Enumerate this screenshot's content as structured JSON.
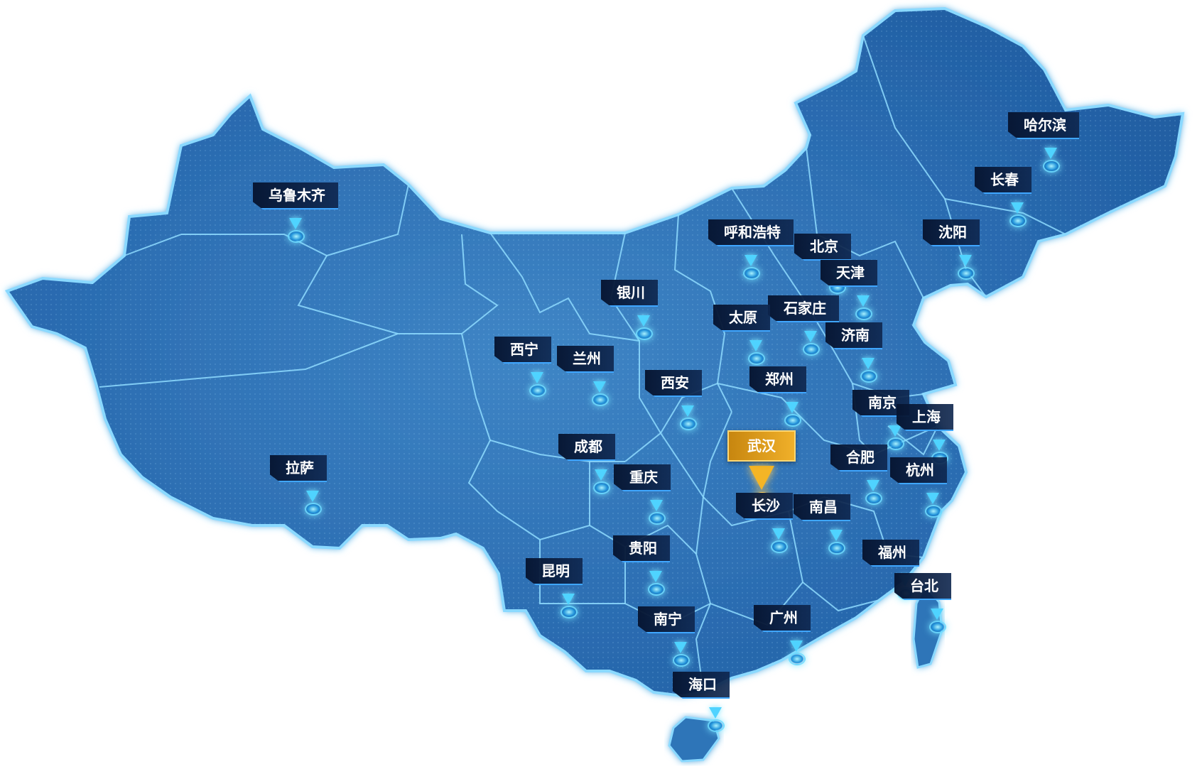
{
  "map": {
    "active_city": "wuhan",
    "colors": {
      "land": "#2e74b8",
      "border": "#7fd2ff",
      "glow": "#56c6ff",
      "label_bg": "#0b1f45",
      "highlight": "#f0b02a"
    },
    "cities": [
      {
        "id": "urumqi",
        "name": "乌鲁木齐"
      },
      {
        "id": "harbin",
        "name": "哈尔滨"
      },
      {
        "id": "changchun",
        "name": "长春"
      },
      {
        "id": "shenyang",
        "name": "沈阳"
      },
      {
        "id": "hohhot",
        "name": "呼和浩特"
      },
      {
        "id": "beijing",
        "name": "北京"
      },
      {
        "id": "tianjin",
        "name": "天津"
      },
      {
        "id": "yinchuan",
        "name": "银川"
      },
      {
        "id": "shijiazhuang",
        "name": "石家庄"
      },
      {
        "id": "taiyuan",
        "name": "太原"
      },
      {
        "id": "jinan",
        "name": "济南"
      },
      {
        "id": "xining",
        "name": "西宁"
      },
      {
        "id": "lanzhou",
        "name": "兰州"
      },
      {
        "id": "xian",
        "name": "西安"
      },
      {
        "id": "zhengzhou",
        "name": "郑州"
      },
      {
        "id": "wuhan",
        "name": "武汉"
      },
      {
        "id": "nanjing",
        "name": "南京"
      },
      {
        "id": "shanghai",
        "name": "上海"
      },
      {
        "id": "hefei",
        "name": "合肥"
      },
      {
        "id": "hangzhou",
        "name": "杭州"
      },
      {
        "id": "lhasa",
        "name": "拉萨"
      },
      {
        "id": "chengdu",
        "name": "成都"
      },
      {
        "id": "chongqing",
        "name": "重庆"
      },
      {
        "id": "changsha",
        "name": "长沙"
      },
      {
        "id": "nanchang",
        "name": "南昌"
      },
      {
        "id": "guiyang",
        "name": "贵阳"
      },
      {
        "id": "fuzhou",
        "name": "福州"
      },
      {
        "id": "taipei",
        "name": "台北"
      },
      {
        "id": "kunming",
        "name": "昆明"
      },
      {
        "id": "guangzhou",
        "name": "广州"
      },
      {
        "id": "nanning",
        "name": "南宁"
      },
      {
        "id": "haikou",
        "name": "海口"
      }
    ]
  }
}
